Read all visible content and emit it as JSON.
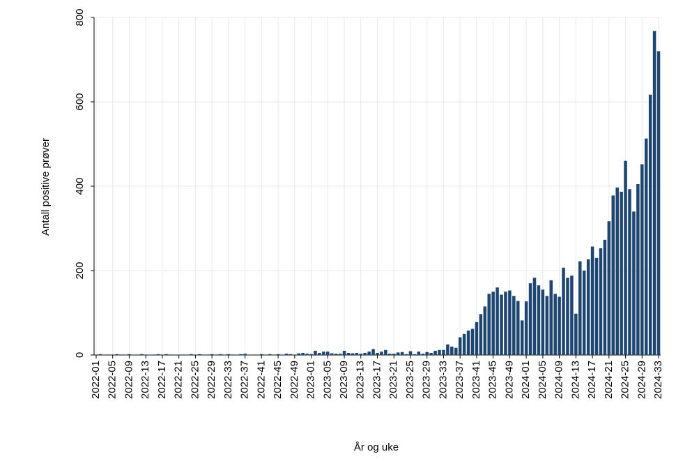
{
  "chart_data": {
    "type": "bar",
    "y_label": "Antall positive prøver",
    "x_label": "År og uke",
    "color": "#1f4670",
    "grid": true,
    "ylim": [
      0,
      800
    ],
    "yticks": [
      0,
      200,
      400,
      600,
      800
    ],
    "categories": [
      "2022-01",
      null,
      null,
      null,
      "2022-05",
      null,
      null,
      null,
      "2022-09",
      null,
      null,
      null,
      "2022-13",
      null,
      null,
      null,
      "2022-17",
      null,
      null,
      null,
      "2022-21",
      null,
      null,
      null,
      "2022-25",
      null,
      null,
      null,
      "2022-29",
      null,
      null,
      null,
      "2022-33",
      null,
      null,
      null,
      "2022-37",
      null,
      null,
      null,
      "2022-41",
      null,
      null,
      null,
      "2022-45",
      null,
      null,
      null,
      "2022-49",
      null,
      null,
      null,
      "2023-01",
      null,
      null,
      null,
      "2023-05",
      null,
      null,
      null,
      "2023-09",
      null,
      null,
      null,
      "2023-13",
      null,
      null,
      null,
      "2023-17",
      null,
      null,
      null,
      "2023-21",
      null,
      null,
      null,
      "2023-25",
      null,
      null,
      null,
      "2023-29",
      null,
      null,
      null,
      "2023-33",
      null,
      null,
      null,
      "2023-37",
      null,
      null,
      null,
      "2023-41",
      null,
      null,
      null,
      "2023-45",
      null,
      null,
      null,
      "2023-49",
      null,
      null,
      null,
      "2024-01",
      null,
      null,
      null,
      "2024-05",
      null,
      null,
      null,
      "2024-09",
      null,
      null,
      null,
      "2024-13",
      null,
      null,
      null,
      "2024-17",
      null,
      null,
      null,
      "2024-21",
      null,
      null,
      null,
      "2024-25",
      null,
      null,
      null,
      "2024-29",
      null,
      null,
      null,
      "2024-33"
    ],
    "values": [
      1,
      2,
      1,
      0,
      1,
      2,
      0,
      1,
      2,
      1,
      0,
      2,
      1,
      1,
      0,
      2,
      1,
      2,
      0,
      1,
      1,
      0,
      1,
      2,
      1,
      2,
      1,
      0,
      2,
      1,
      2,
      1,
      2,
      0,
      1,
      2,
      3,
      1,
      0,
      1,
      2,
      1,
      2,
      1,
      2,
      1,
      3,
      2,
      1,
      4,
      5,
      3,
      2,
      10,
      5,
      8,
      8,
      4,
      3,
      3,
      10,
      5,
      4,
      5,
      3,
      5,
      8,
      14,
      5,
      8,
      12,
      3,
      3,
      6,
      7,
      2,
      9,
      2,
      8,
      3,
      7,
      5,
      10,
      12,
      12,
      25,
      20,
      17,
      42,
      50,
      58,
      62,
      78,
      97,
      115,
      145,
      150,
      160,
      143,
      150,
      153,
      140,
      128,
      82,
      127,
      170,
      183,
      165,
      155,
      140,
      177,
      145,
      138,
      207,
      183,
      188,
      98,
      222,
      200,
      227,
      257,
      230,
      253,
      273,
      317,
      378,
      397,
      387,
      460,
      393,
      340,
      405,
      452,
      513,
      617,
      768,
      720
    ]
  }
}
